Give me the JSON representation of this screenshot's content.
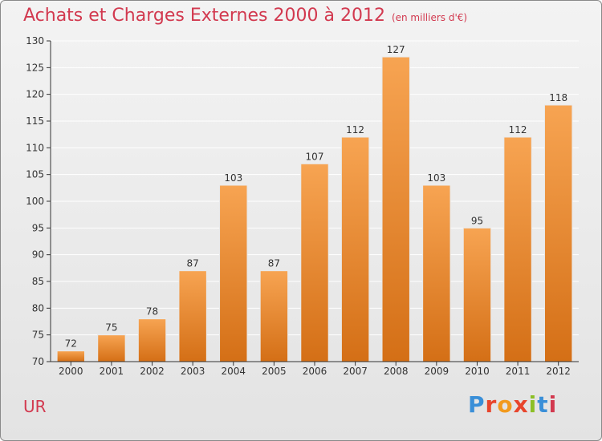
{
  "title": "Achats et Charges Externes 2000 à 2012",
  "subtitle": "(en milliers d'€)",
  "place": "UR",
  "logo": {
    "text": "Proxiti",
    "colors": [
      "#3a8fd8",
      "#e8452c",
      "#f29a1d",
      "#e8452c",
      "#8cbf26",
      "#3a8fd8",
      "#d2394f"
    ]
  },
  "colors": {
    "accent": "#d2394f",
    "bar_light": "#f7a452",
    "bar_dark": "#d46f16"
  },
  "chart_data": {
    "type": "bar",
    "title": "Achats et Charges Externes 2000 à 2012",
    "subtitle": "(en milliers d'€)",
    "categories": [
      "2000",
      "2001",
      "2002",
      "2003",
      "2004",
      "2005",
      "2006",
      "2007",
      "2008",
      "2009",
      "2010",
      "2011",
      "2012"
    ],
    "values": [
      72,
      75,
      78,
      87,
      103,
      87,
      107,
      112,
      127,
      103,
      95,
      112,
      118
    ],
    "ylim": [
      70,
      130
    ],
    "yticks": [
      70,
      75,
      80,
      85,
      90,
      95,
      100,
      105,
      110,
      115,
      120,
      125,
      130
    ],
    "grid": true,
    "legend": "none"
  }
}
